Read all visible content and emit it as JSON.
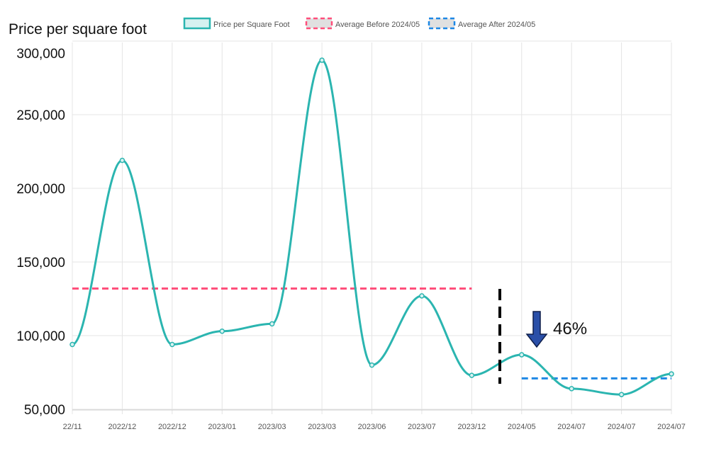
{
  "chart_data": {
    "type": "line",
    "title": "Price per square foot",
    "ylabel": "Price per square foot",
    "xlabel": "",
    "ylim": [
      50000,
      300000
    ],
    "yticks": [
      50000,
      100000,
      150000,
      200000,
      250000,
      300000
    ],
    "ytick_labels": [
      "50,000",
      "100,000",
      "150,000",
      "200,000",
      "250,000",
      "300,000"
    ],
    "categories": [
      "22/11",
      "2022/12",
      "2022/12",
      "2023/01",
      "2023/03",
      "2023/03",
      "2023/06",
      "2023/07",
      "2023/12",
      "2024/05",
      "2024/07",
      "2024/07",
      "2024/07"
    ],
    "series": [
      {
        "name": "Price per Square Foot",
        "color": "#2bb5b0",
        "values": [
          94000,
          219000,
          94000,
          103000,
          108000,
          287000,
          80000,
          127000,
          73000,
          87000,
          64000,
          60000,
          74000
        ]
      }
    ],
    "reference_lines": [
      {
        "name": "Average Before 2024/05",
        "color": "#ff4f7b",
        "value": 132000,
        "from_index": 0,
        "to_index": 8
      },
      {
        "name": "Average After 2024/05",
        "color": "#1e88e5",
        "value": 71000,
        "from_index": 9,
        "to_index": 12
      }
    ],
    "legend": {
      "placement": "top",
      "entries": [
        "Price per Square Foot",
        "Average Before 2024/05",
        "Average After 2024/05"
      ]
    },
    "annotations": {
      "change_label": "46%",
      "change_direction": "down",
      "divider_between": [
        "2023/12",
        "2024/05"
      ]
    },
    "grid": true
  }
}
